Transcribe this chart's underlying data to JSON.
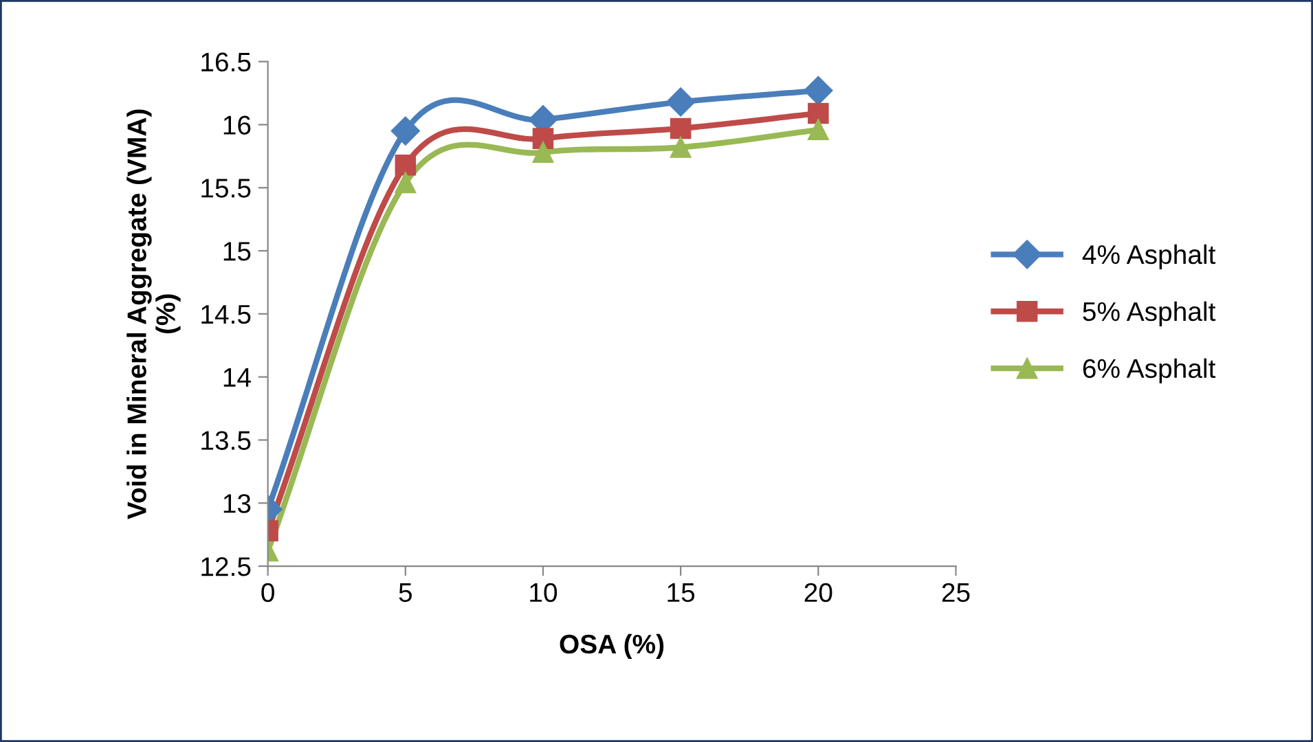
{
  "chart_data": {
    "type": "line",
    "xlabel": "OSA (%)",
    "ylabel": "Void in Mineral Aggregate (VMA)\n(%)",
    "x": [
      0,
      5,
      10,
      15,
      20
    ],
    "series": [
      {
        "name": "4% Asphalt",
        "color": "#4a7ebb",
        "marker": "diamond",
        "values": [
          12.95,
          15.95,
          16.04,
          16.18,
          16.27
        ]
      },
      {
        "name": "5% Asphalt",
        "color": "#be4b48",
        "marker": "square",
        "values": [
          12.78,
          15.68,
          15.89,
          15.97,
          16.09
        ]
      },
      {
        "name": "6% Asphalt",
        "color": "#98b954",
        "marker": "triangle",
        "values": [
          12.62,
          15.54,
          15.78,
          15.82,
          15.96
        ]
      }
    ],
    "xlim": [
      0,
      25
    ],
    "xticks": [
      0,
      5,
      10,
      15,
      20,
      25
    ],
    "ylim": [
      12.5,
      16.5
    ],
    "yticks": [
      12.5,
      13,
      13.5,
      14,
      14.5,
      15,
      15.5,
      16,
      16.5
    ],
    "grid": false,
    "legend": "right",
    "line_style": "solid"
  }
}
